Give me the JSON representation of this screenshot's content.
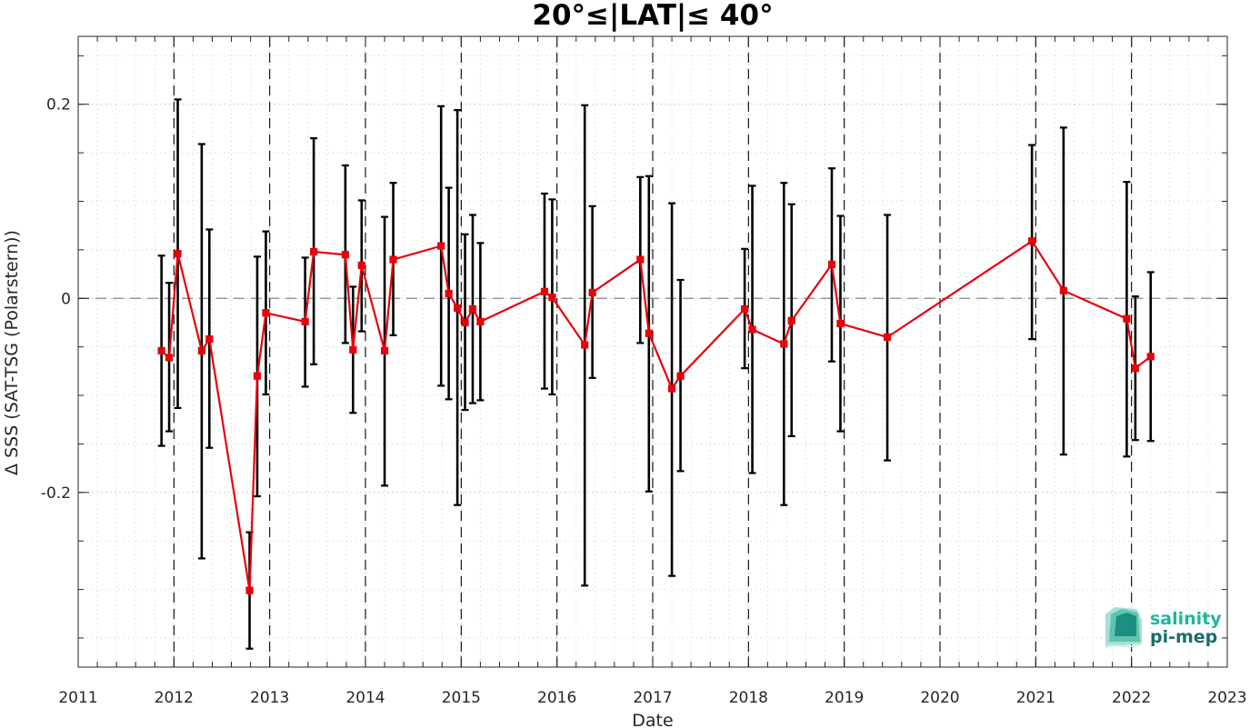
{
  "chart_data": {
    "type": "line",
    "title": "20°≤|LAT|≤ 40°",
    "xlabel": "Date",
    "ylabel": "Δ SSS (SAT-TSG (Polarstern))",
    "xlim": [
      2011,
      2023
    ],
    "ylim": [
      -0.38,
      0.27
    ],
    "xticks": [
      2011,
      2012,
      2013,
      2014,
      2015,
      2016,
      2017,
      2018,
      2019,
      2020,
      2021,
      2022,
      2023
    ],
    "xtick_labels": [
      "2011",
      "2012",
      "2013",
      "2014",
      "2015",
      "2016",
      "2017",
      "2018",
      "2019",
      "2020",
      "2021",
      "2022",
      "2023"
    ],
    "yticks": [
      -0.2,
      0,
      0.2
    ],
    "ytick_labels": [
      "-0.2",
      "0",
      "0.2"
    ],
    "year_separators": [
      2012,
      2013,
      2014,
      2015,
      2016,
      2017,
      2018,
      2019,
      2020,
      2021,
      2022
    ],
    "zero_reference_line": true,
    "grid": "minor dotted",
    "series": [
      {
        "color": "#e8000b",
        "marker": "square",
        "errorbar_color": "#000000",
        "points": [
          {
            "x": 2011.87,
            "y": -0.054,
            "lo": -0.152,
            "hi": 0.044
          },
          {
            "x": 2011.95,
            "y": -0.061,
            "lo": -0.137,
            "hi": 0.016
          },
          {
            "x": 2012.04,
            "y": 0.046,
            "lo": -0.113,
            "hi": 0.205
          },
          {
            "x": 2012.29,
            "y": -0.054,
            "lo": -0.268,
            "hi": 0.159
          },
          {
            "x": 2012.37,
            "y": -0.042,
            "lo": -0.154,
            "hi": 0.071
          },
          {
            "x": 2012.79,
            "y": -0.301,
            "lo": -0.361,
            "hi": -0.241
          },
          {
            "x": 2012.87,
            "y": -0.08,
            "lo": -0.204,
            "hi": 0.043
          },
          {
            "x": 2012.96,
            "y": -0.015,
            "lo": -0.099,
            "hi": 0.069
          },
          {
            "x": 2013.37,
            "y": -0.024,
            "lo": -0.091,
            "hi": 0.042
          },
          {
            "x": 2013.46,
            "y": 0.048,
            "lo": -0.068,
            "hi": 0.165
          },
          {
            "x": 2013.79,
            "y": 0.045,
            "lo": -0.046,
            "hi": 0.137
          },
          {
            "x": 2013.87,
            "y": -0.053,
            "lo": -0.118,
            "hi": 0.012
          },
          {
            "x": 2013.96,
            "y": 0.034,
            "lo": -0.034,
            "hi": 0.101
          },
          {
            "x": 2014.2,
            "y": -0.054,
            "lo": -0.193,
            "hi": 0.084
          },
          {
            "x": 2014.29,
            "y": 0.04,
            "lo": -0.038,
            "hi": 0.119
          },
          {
            "x": 2014.79,
            "y": 0.054,
            "lo": -0.09,
            "hi": 0.198
          },
          {
            "x": 2014.87,
            "y": 0.005,
            "lo": -0.104,
            "hi": 0.114
          },
          {
            "x": 2014.96,
            "y": -0.01,
            "lo": -0.213,
            "hi": 0.194
          },
          {
            "x": 2015.04,
            "y": -0.025,
            "lo": -0.115,
            "hi": 0.066
          },
          {
            "x": 2015.12,
            "y": -0.011,
            "lo": -0.108,
            "hi": 0.086
          },
          {
            "x": 2015.2,
            "y": -0.024,
            "lo": -0.105,
            "hi": 0.057
          },
          {
            "x": 2015.87,
            "y": 0.007,
            "lo": -0.093,
            "hi": 0.108
          },
          {
            "x": 2015.95,
            "y": 0.001,
            "lo": -0.099,
            "hi": 0.102
          },
          {
            "x": 2016.29,
            "y": -0.048,
            "lo": -0.296,
            "hi": 0.199
          },
          {
            "x": 2016.37,
            "y": 0.006,
            "lo": -0.082,
            "hi": 0.095
          },
          {
            "x": 2016.87,
            "y": 0.04,
            "lo": -0.046,
            "hi": 0.125
          },
          {
            "x": 2016.96,
            "y": -0.036,
            "lo": -0.199,
            "hi": 0.126
          },
          {
            "x": 2017.2,
            "y": -0.093,
            "lo": -0.286,
            "hi": 0.098
          },
          {
            "x": 2017.29,
            "y": -0.08,
            "lo": -0.178,
            "hi": 0.019
          },
          {
            "x": 2017.96,
            "y": -0.011,
            "lo": -0.072,
            "hi": 0.051
          },
          {
            "x": 2018.04,
            "y": -0.032,
            "lo": -0.18,
            "hi": 0.116
          },
          {
            "x": 2018.37,
            "y": -0.047,
            "lo": -0.213,
            "hi": 0.119
          },
          {
            "x": 2018.45,
            "y": -0.023,
            "lo": -0.142,
            "hi": 0.097
          },
          {
            "x": 2018.87,
            "y": 0.035,
            "lo": -0.065,
            "hi": 0.134
          },
          {
            "x": 2018.96,
            "y": -0.026,
            "lo": -0.137,
            "hi": 0.085
          },
          {
            "x": 2019.45,
            "y": -0.04,
            "lo": -0.167,
            "hi": 0.086
          },
          {
            "x": 2020.96,
            "y": 0.059,
            "lo": -0.042,
            "hi": 0.158
          },
          {
            "x": 2021.29,
            "y": 0.008,
            "lo": -0.161,
            "hi": 0.176
          },
          {
            "x": 2021.95,
            "y": -0.021,
            "lo": -0.163,
            "hi": 0.12
          },
          {
            "x": 2022.04,
            "y": -0.072,
            "lo": -0.146,
            "hi": 0.002
          },
          {
            "x": 2022.2,
            "y": -0.06,
            "lo": -0.147,
            "hi": 0.027
          }
        ]
      }
    ]
  },
  "logo": {
    "line1": "salinity",
    "line2": "pi-mep",
    "color1": "#1fb5a0",
    "color2": "#1a6e6a",
    "icon": "salinity-pi-mep-logo-icon"
  }
}
